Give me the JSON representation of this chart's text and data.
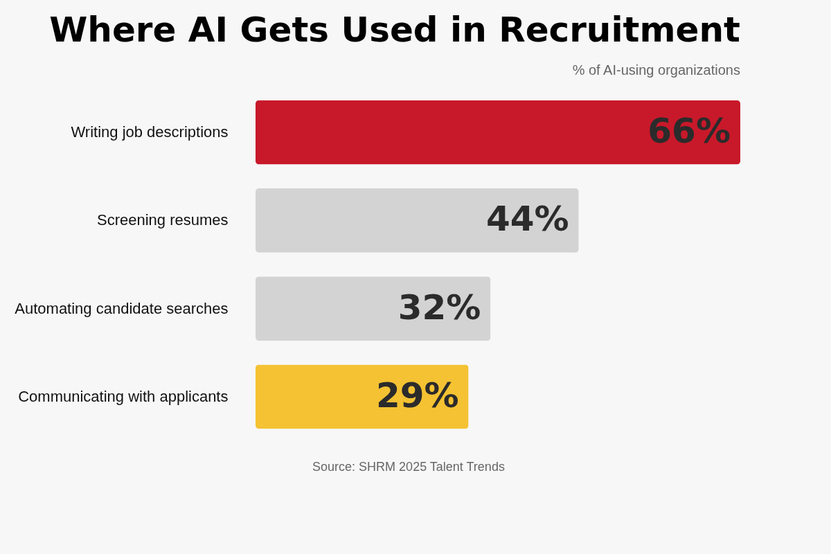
{
  "chart_data": {
    "type": "bar",
    "orientation": "horizontal",
    "title": "Where AI Gets Used in Recruitment",
    "subtitle": "% of AI-using organizations",
    "categories": [
      "Writing job descriptions",
      "Screening resumes",
      "Automating candidate searches",
      "Communicating with applicants"
    ],
    "values": [
      66,
      44,
      32,
      29
    ],
    "colors": [
      "#c8192a",
      "#d3d3d3",
      "#d3d3d3",
      "#f4c232"
    ],
    "value_labels": [
      "66%",
      "44%",
      "32%",
      "29%"
    ],
    "annotations": [
      "Source: SHRM 2025 Talent Trends"
    ]
  }
}
